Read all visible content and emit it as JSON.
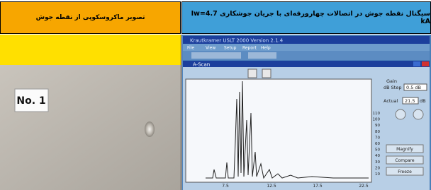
{
  "header": {
    "left_title": "تصویر ماکروسکوپی از نقطه جوش",
    "right_title": "سیگنال نقطه جوش در اتصالات چهارورقه‌ای با جریان جوشکاری Iw=4.7 kA"
  },
  "photo": {
    "label": "No. 1"
  },
  "software": {
    "window_title": "Krautkramer USLT 2000  Version 2.1.4",
    "menu": [
      "File",
      "View",
      "Setup",
      "Report",
      "Help"
    ],
    "panel_title": "A-Scan",
    "gain_label": "Gain",
    "db_step_label": "dB Step",
    "db_step_value": "0.5 dB",
    "actual_label": "Actual",
    "actual_value": "21.5",
    "actual_unit": "dB",
    "buttons": [
      "Magnify",
      "Compare",
      "Freeze"
    ],
    "y_ticks": [
      "110",
      "100",
      "90",
      "80",
      "70",
      "60",
      "50",
      "40",
      "30",
      "20",
      "10"
    ],
    "x_ticks": [
      "7.5",
      "12.5",
      "17.5",
      "22.5"
    ]
  }
}
